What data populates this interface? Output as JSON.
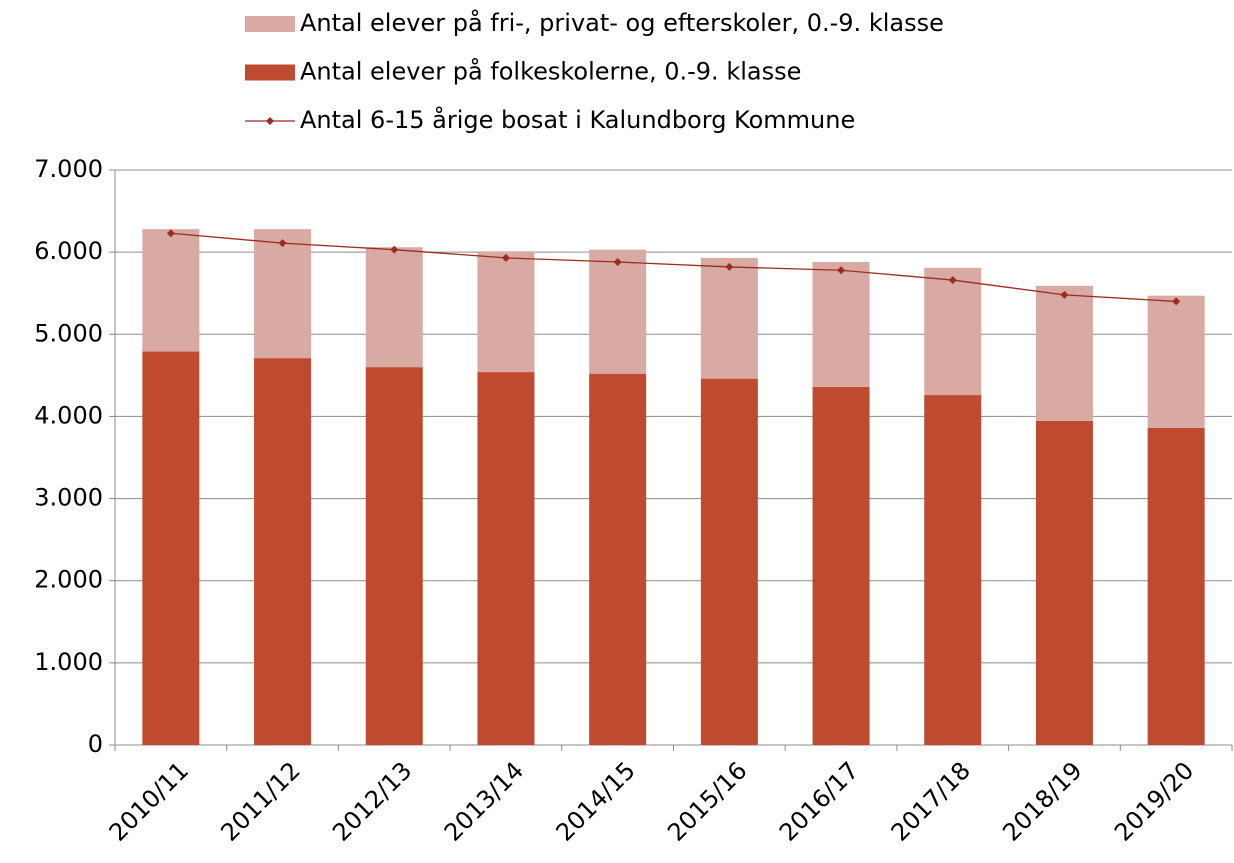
{
  "chart_data": {
    "type": "bar",
    "stacked": true,
    "categories": [
      "2010/11",
      "2011/12",
      "2012/13",
      "2013/14",
      "2014/15",
      "2015/16",
      "2016/17",
      "2017/18",
      "2018/19",
      "2019/20"
    ],
    "series": [
      {
        "name": "Antal elever på folkeskolerne, 0.-9. klasse",
        "type": "bar",
        "color": "#be4b2f",
        "values": [
          4790,
          4710,
          4600,
          4540,
          4520,
          4460,
          4360,
          4260,
          3945,
          3860
        ]
      },
      {
        "name": "Antal elever på fri-, privat- og efterskoler, 0.-9. klasse",
        "type": "bar",
        "color": "#d9aaa4",
        "values": [
          1490,
          1570,
          1460,
          1470,
          1510,
          1470,
          1520,
          1550,
          1645,
          1610
        ]
      },
      {
        "name": "Antal 6-15 årige bosat i Kalundborg Kommune",
        "type": "line",
        "color": "#9b2d1f",
        "values": [
          6230,
          6110,
          6030,
          5930,
          5880,
          5820,
          5780,
          5660,
          5480,
          5400
        ]
      }
    ],
    "ylim": [
      0,
      7000
    ],
    "yticks": [
      0,
      {
        "value": 1000,
        "label": "1.000"
      },
      {
        "value": 2000,
        "label": "2.000"
      },
      {
        "value": 3000,
        "label": "3.000"
      },
      {
        "value": 4000,
        "label": "4.000"
      },
      {
        "value": 5000,
        "label": "5.000"
      },
      {
        "value": 6000,
        "label": "6.000"
      },
      {
        "value": 7000,
        "label": "7.000"
      }
    ],
    "grid": true,
    "legend": "top"
  }
}
